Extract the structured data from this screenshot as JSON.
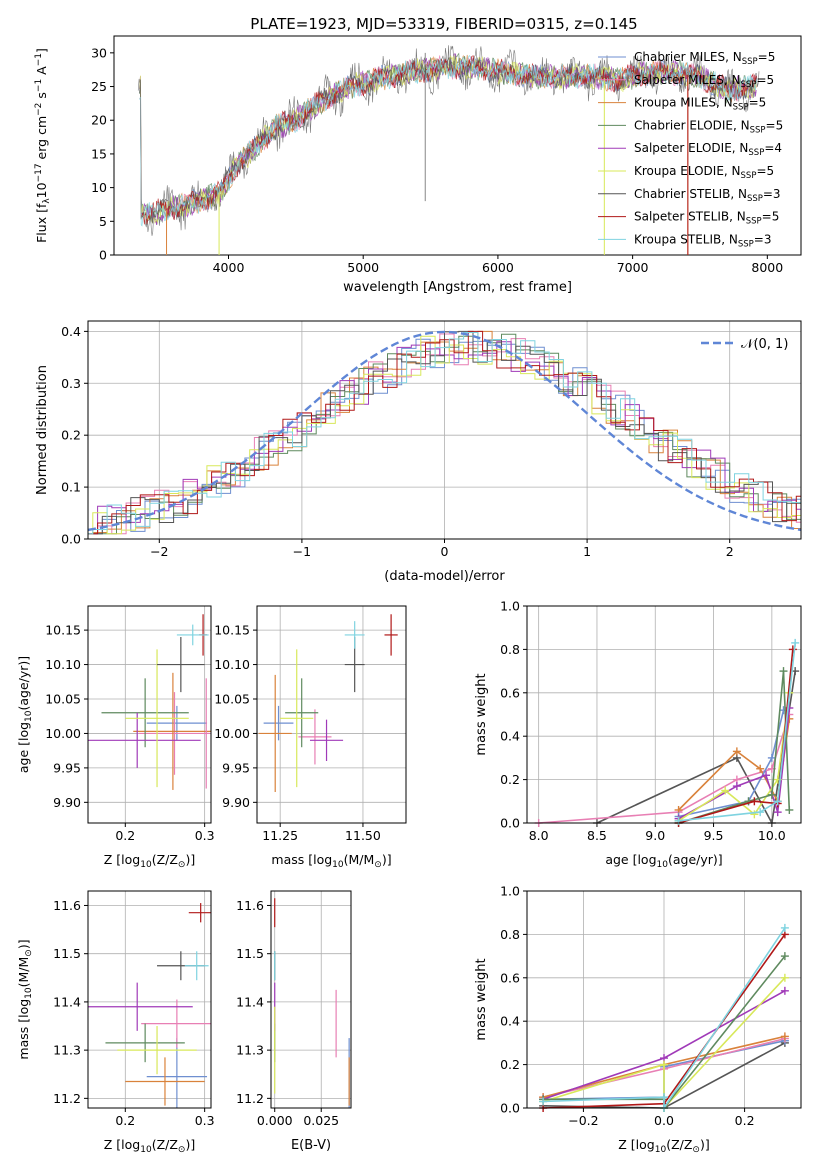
{
  "figure": {
    "title": "PLATE=1923, MJD=53319, FIBERID=0315, z=0.145"
  },
  "colors": {
    "chabrier_miles": "#6f8fd0",
    "salpeter_miles": "#e87fb4",
    "kroupa_miles": "#d9823b",
    "chabrier_elodie": "#5f8a5f",
    "salpeter_elodie": "#a03ab8",
    "kroupa_elodie": "#d8e85a",
    "chabrier_stelib": "#555555",
    "salpeter_stelib": "#b01818",
    "kroupa_stelib": "#7fd3e0",
    "normal": "#5f86d6",
    "grid": "#b0b0b0"
  },
  "chart_data": [
    {
      "id": "spectrum",
      "type": "line",
      "title": "PLATE=1923, MJD=53319, FIBERID=0315, z=0.145",
      "xlabel": "wavelength [Angstrom, rest frame]",
      "ylabel": "Flux [f$_\\lambda$10$^{-17}$ erg cm$^{-2}$ s$^{-1}$ A$^{-1}$]",
      "ylabel_parts": {
        "a": "Flux [f",
        "b": "λ",
        "c": "10",
        "d": "−17",
        "e": " erg cm",
        "f": "−2",
        "g": " s",
        "h": "−1",
        "i": " A",
        "j": "−1",
        "k": "]"
      },
      "xlim": [
        3150,
        8250
      ],
      "ylim": [
        0,
        32.5
      ],
      "xticks": [
        4000,
        5000,
        6000,
        7000,
        8000
      ],
      "yticks": [
        0,
        5,
        10,
        15,
        20,
        25,
        30
      ],
      "grid": false,
      "legend_position": "upper-right",
      "series": [
        {
          "name": "Chabrier MILES, N",
          "sub": "SSP",
          "suffix": "=5",
          "color_key": "chabrier_miles"
        },
        {
          "name": "Salpeter MILES, N",
          "sub": "SSP",
          "suffix": "=5",
          "color_key": "salpeter_miles"
        },
        {
          "name": "Kroupa MILES, N",
          "sub": "SSP",
          "suffix": "=5",
          "color_key": "kroupa_miles"
        },
        {
          "name": "Chabrier ELODIE, N",
          "sub": "SSP",
          "suffix": "=5",
          "color_key": "chabrier_elodie"
        },
        {
          "name": "Salpeter ELODIE, N",
          "sub": "SSP",
          "suffix": "=4",
          "color_key": "salpeter_elodie"
        },
        {
          "name": "Kroupa ELODIE, N",
          "sub": "SSP",
          "suffix": "=5",
          "color_key": "kroupa_elodie"
        },
        {
          "name": "Chabrier STELIB, N",
          "sub": "SSP",
          "suffix": "=3",
          "color_key": "chabrier_stelib"
        },
        {
          "name": "Salpeter STELIB, N",
          "sub": "SSP",
          "suffix": "=5",
          "color_key": "salpeter_stelib"
        },
        {
          "name": "Kroupa STELIB, N",
          "sub": "SSP",
          "suffix": "=3",
          "color_key": "kroupa_stelib"
        }
      ],
      "continuum": {
        "x": [
          3350,
          3500,
          3700,
          3850,
          3950,
          4050,
          4200,
          4350,
          4500,
          4700,
          4900,
          5100,
          5300,
          5500,
          5700,
          5900,
          6100,
          6300,
          6500,
          6700,
          6900,
          7100,
          7300,
          7500,
          7700,
          7900
        ],
        "y": [
          6,
          6.5,
          7.5,
          8.5,
          9.5,
          13,
          16,
          19,
          20,
          23,
          25,
          26,
          27,
          27.5,
          28,
          27.5,
          27,
          26.5,
          26.5,
          26.5,
          26,
          27,
          27,
          26.5,
          24.5,
          25
        ]
      }
    },
    {
      "id": "residuals",
      "type": "histogram",
      "xlabel": "(data-model)/error",
      "ylabel": "Normed distribution",
      "xlim": [
        -2.5,
        2.5
      ],
      "ylim": [
        0,
        0.42
      ],
      "xticks": [
        -2,
        -1,
        0,
        1,
        2
      ],
      "yticks": [
        0.0,
        0.1,
        0.2,
        0.3,
        0.4
      ],
      "grid": true,
      "legend_position": "upper-right",
      "reference_label": "𝒩(0, 1)",
      "bin_width": 0.1
    },
    {
      "id": "age_vs_Z",
      "type": "errorbar",
      "xlabel_parts": {
        "a": "Z [log",
        "b": "10",
        "c": "(Z/Z",
        "d": "⊙",
        "e": ")]"
      },
      "ylabel_parts": {
        "a": "age  [log",
        "b": "10",
        "c": "(age/yr)]"
      },
      "xlim": [
        0.153,
        0.308
      ],
      "ylim": [
        9.87,
        10.185
      ],
      "xticks": [
        0.2,
        0.3
      ],
      "yticks": [
        9.9,
        9.95,
        10.0,
        10.05,
        10.1,
        10.15
      ],
      "points": [
        {
          "series": "chabrier_miles",
          "x": 0.265,
          "xerr": 0.038,
          "y": 10.015,
          "yerr": 0.025
        },
        {
          "series": "salpeter_miles",
          "x": 0.262,
          "xerr": 0.045,
          "y": 10.0,
          "yerr": 0.06
        },
        {
          "series": "kroupa_miles",
          "x": 0.26,
          "xerr": 0.05,
          "y": 10.003,
          "yerr": 0.085
        },
        {
          "series": "chabrier_elodie",
          "x": 0.225,
          "xerr": 0.055,
          "y": 10.03,
          "yerr": 0.05
        },
        {
          "series": "salpeter_elodie",
          "x": 0.215,
          "xerr": 0.08,
          "y": 9.99,
          "yerr": 0.04
        },
        {
          "series": "kroupa_elodie",
          "x": 0.24,
          "xerr": 0.04,
          "y": 10.022,
          "yerr": 0.1
        },
        {
          "series": "chabrier_stelib",
          "x": 0.27,
          "xerr": 0.03,
          "y": 10.1,
          "yerr": 0.04
        },
        {
          "series": "salpeter_stelib",
          "x": 0.298,
          "xerr": 0.005,
          "y": 10.143,
          "yerr": 0.03
        },
        {
          "series": "kroupa_stelib",
          "x": 0.285,
          "xerr": 0.02,
          "y": 10.143,
          "yerr": 0.015
        },
        {
          "series": "salpeter_miles",
          "x": 0.302,
          "xerr": 0.003,
          "y": 10.0,
          "yerr": 0.08
        }
      ]
    },
    {
      "id": "age_vs_mass",
      "type": "errorbar",
      "xlabel_parts": {
        "a": "mass [log",
        "b": "10",
        "c": "(M/M",
        "d": "⊙",
        "e": ")]"
      },
      "xlim": [
        11.18,
        11.63
      ],
      "ylim": [
        9.87,
        10.185
      ],
      "xticks": [
        11.25,
        11.5
      ],
      "yticks": [
        9.9,
        9.95,
        10.0,
        10.05,
        10.1,
        10.15
      ],
      "points": [
        {
          "series": "chabrier_miles",
          "x": 11.245,
          "xerr": 0.045,
          "y": 10.015,
          "yerr": 0.025
        },
        {
          "series": "salpeter_miles",
          "x": 11.355,
          "xerr": 0.05,
          "y": 9.995,
          "yerr": 0.04
        },
        {
          "series": "kroupa_miles",
          "x": 11.235,
          "xerr": 0.05,
          "y": 10.0,
          "yerr": 0.085
        },
        {
          "series": "chabrier_elodie",
          "x": 11.315,
          "xerr": 0.05,
          "y": 10.03,
          "yerr": 0.05
        },
        {
          "series": "salpeter_elodie",
          "x": 11.39,
          "xerr": 0.05,
          "y": 9.99,
          "yerr": 0.03
        },
        {
          "series": "kroupa_elodie",
          "x": 11.3,
          "xerr": 0.05,
          "y": 10.022,
          "yerr": 0.1
        },
        {
          "series": "chabrier_stelib",
          "x": 11.475,
          "xerr": 0.03,
          "y": 10.1,
          "yerr": 0.04
        },
        {
          "series": "salpeter_stelib",
          "x": 11.585,
          "xerr": 0.02,
          "y": 10.143,
          "yerr": 0.03
        },
        {
          "series": "kroupa_stelib",
          "x": 11.475,
          "xerr": 0.03,
          "y": 10.143,
          "yerr": 0.02
        }
      ]
    },
    {
      "id": "mass_weight_vs_age",
      "type": "line",
      "xlabel_parts": {
        "a": "age  [log",
        "b": "10",
        "c": "(age/yr)]"
      },
      "ylabel": "mass weight",
      "xlim": [
        7.9,
        10.25
      ],
      "ylim": [
        0.0,
        1.0
      ],
      "xticks": [
        8.0,
        8.5,
        9.0,
        9.5,
        10.0
      ],
      "yticks": [
        0.0,
        0.2,
        0.4,
        0.6,
        0.8,
        1.0
      ],
      "series": [
        {
          "series": "chabrier_stelib",
          "x": [
            8.5,
            9.7,
            10.0,
            10.2
          ],
          "y": [
            0.0,
            0.3,
            0.0,
            0.7
          ]
        },
        {
          "series": "salpeter_miles",
          "x": [
            8.0,
            9.2,
            9.7,
            10.0,
            10.15
          ],
          "y": [
            0.0,
            0.05,
            0.2,
            0.25,
            0.5
          ]
        },
        {
          "series": "kroupa_miles",
          "x": [
            9.2,
            9.7,
            9.9,
            10.05,
            10.15
          ],
          "y": [
            0.06,
            0.33,
            0.25,
            0.1,
            0.48
          ]
        },
        {
          "series": "chabrier_miles",
          "x": [
            9.2,
            9.8,
            10.0,
            10.1
          ],
          "y": [
            0.03,
            0.1,
            0.3,
            0.52
          ]
        },
        {
          "series": "salpeter_elodie",
          "x": [
            9.2,
            9.7,
            9.95,
            10.05,
            10.15
          ],
          "y": [
            0.02,
            0.17,
            0.22,
            0.05,
            0.53
          ]
        },
        {
          "series": "kroupa_elodie",
          "x": [
            9.2,
            9.6,
            9.85,
            10.05,
            10.15
          ],
          "y": [
            0.01,
            0.15,
            0.04,
            0.2,
            0.6
          ]
        },
        {
          "series": "chabrier_elodie",
          "x": [
            9.2,
            9.8,
            10.0,
            10.1,
            10.15
          ],
          "y": [
            0.0,
            0.1,
            0.13,
            0.7,
            0.06
          ]
        },
        {
          "series": "salpeter_stelib",
          "x": [
            9.2,
            9.85,
            10.05,
            10.18
          ],
          "y": [
            0.0,
            0.1,
            0.09,
            0.8
          ]
        },
        {
          "series": "kroupa_stelib",
          "x": [
            9.2,
            9.9,
            10.05,
            10.2
          ],
          "y": [
            0.01,
            0.05,
            0.1,
            0.83
          ]
        }
      ]
    },
    {
      "id": "mass_vs_Z",
      "type": "errorbar",
      "xlabel_parts": {
        "a": "Z [log",
        "b": "10",
        "c": "(Z/Z",
        "d": "⊙",
        "e": ")]"
      },
      "ylabel_parts": {
        "a": "mass [log",
        "b": "10",
        "c": "(M/M",
        "d": "⊙",
        "e": ")]"
      },
      "xlim": [
        0.153,
        0.308
      ],
      "ylim": [
        11.18,
        11.63
      ],
      "xticks": [
        0.2,
        0.3
      ],
      "yticks": [
        11.2,
        11.3,
        11.4,
        11.5,
        11.6
      ],
      "points": [
        {
          "series": "chabrier_miles",
          "x": 0.265,
          "xerr": 0.038,
          "y": 11.245,
          "yerr": 0.08
        },
        {
          "series": "salpeter_miles",
          "x": 0.265,
          "xerr": 0.045,
          "y": 11.355,
          "yerr": 0.05
        },
        {
          "series": "kroupa_miles",
          "x": 0.25,
          "xerr": 0.05,
          "y": 11.235,
          "yerr": 0.05
        },
        {
          "series": "chabrier_elodie",
          "x": 0.225,
          "xerr": 0.05,
          "y": 11.315,
          "yerr": 0.04
        },
        {
          "series": "salpeter_elodie",
          "x": 0.215,
          "xerr": 0.07,
          "y": 11.39,
          "yerr": 0.05
        },
        {
          "series": "kroupa_elodie",
          "x": 0.24,
          "xerr": 0.05,
          "y": 11.3,
          "yerr": 0.05
        },
        {
          "series": "chabrier_stelib",
          "x": 0.27,
          "xerr": 0.03,
          "y": 11.475,
          "yerr": 0.03
        },
        {
          "series": "salpeter_stelib",
          "x": 0.295,
          "xerr": 0.015,
          "y": 11.585,
          "yerr": 0.02
        },
        {
          "series": "kroupa_stelib",
          "x": 0.29,
          "xerr": 0.015,
          "y": 11.475,
          "yerr": 0.03
        }
      ]
    },
    {
      "id": "mass_vs_ebv",
      "type": "errorbar",
      "xlabel": "E(B-V)",
      "xlim": [
        -0.002,
        0.041
      ],
      "ylim": [
        11.18,
        11.63
      ],
      "xticks": [
        0.0,
        0.025
      ],
      "yticks": [
        11.2,
        11.3,
        11.4,
        11.5,
        11.6
      ],
      "points": [
        {
          "series": "chabrier_miles",
          "x": 0.04,
          "xerr": 0,
          "y": 11.245,
          "yerr": 0.08
        },
        {
          "series": "salpeter_miles",
          "x": 0.033,
          "xerr": 0,
          "y": 11.355,
          "yerr": 0.07
        },
        {
          "series": "kroupa_miles",
          "x": 0.04,
          "xerr": 0,
          "y": 11.235,
          "yerr": 0.05
        },
        {
          "series": "chabrier_elodie",
          "x": 0.0,
          "xerr": 0,
          "y": 11.315,
          "yerr": 0.04
        },
        {
          "series": "salpeter_elodie",
          "x": 0.0,
          "xerr": 0,
          "y": 11.39,
          "yerr": 0.05
        },
        {
          "series": "kroupa_elodie",
          "x": 0.0,
          "xerr": 0,
          "y": 11.3,
          "yerr": 0.09
        },
        {
          "series": "chabrier_stelib",
          "x": 0.0,
          "xerr": 0,
          "y": 11.475,
          "yerr": 0.03
        },
        {
          "series": "salpeter_stelib",
          "x": 0.0,
          "xerr": 0,
          "y": 11.585,
          "yerr": 0.03
        },
        {
          "series": "kroupa_stelib",
          "x": 0.0,
          "xerr": 0,
          "y": 11.475,
          "yerr": 0.03
        }
      ]
    },
    {
      "id": "mass_weight_vs_Z",
      "type": "line",
      "xlabel_parts": {
        "a": "Z [log",
        "b": "10",
        "c": "(Z/Z",
        "d": "⊙",
        "e": ")]"
      },
      "ylabel": "mass weight",
      "xlim": [
        -0.34,
        0.34
      ],
      "ylim": [
        0.0,
        1.0
      ],
      "xticks": [
        -0.2,
        0.0,
        0.2
      ],
      "yticks": [
        0.0,
        0.2,
        0.4,
        0.6,
        0.8,
        1.0
      ],
      "series": [
        {
          "series": "chabrier_stelib",
          "x": [
            -0.3,
            0.0,
            0.3
          ],
          "y": [
            0.01,
            0.0,
            0.3
          ]
        },
        {
          "series": "chabrier_miles",
          "x": [
            -0.3,
            0.0,
            0.0,
            0.3
          ],
          "y": [
            0.04,
            0.05,
            0.19,
            0.31
          ]
        },
        {
          "series": "salpeter_miles",
          "x": [
            -0.3,
            0.0,
            0.3
          ],
          "y": [
            0.05,
            0.18,
            0.32
          ]
        },
        {
          "series": "kroupa_miles",
          "x": [
            -0.3,
            0.0,
            0.3
          ],
          "y": [
            0.05,
            0.2,
            0.33
          ]
        },
        {
          "series": "salpeter_elodie",
          "x": [
            -0.3,
            0.0,
            0.3
          ],
          "y": [
            0.04,
            0.23,
            0.54
          ]
        },
        {
          "series": "kroupa_elodie",
          "x": [
            -0.3,
            0.0,
            0.0,
            0.3
          ],
          "y": [
            0.03,
            0.2,
            0.0,
            0.6
          ]
        },
        {
          "series": "chabrier_elodie",
          "x": [
            -0.3,
            0.0,
            0.0,
            0.3
          ],
          "y": [
            0.04,
            0.04,
            0.0,
            0.7
          ]
        },
        {
          "series": "salpeter_stelib",
          "x": [
            -0.3,
            0.0,
            0.3
          ],
          "y": [
            0.0,
            0.02,
            0.8
          ]
        },
        {
          "series": "kroupa_stelib",
          "x": [
            -0.3,
            0.0,
            0.0,
            0.3
          ],
          "y": [
            0.03,
            0.05,
            0.0,
            0.83
          ]
        }
      ]
    }
  ]
}
